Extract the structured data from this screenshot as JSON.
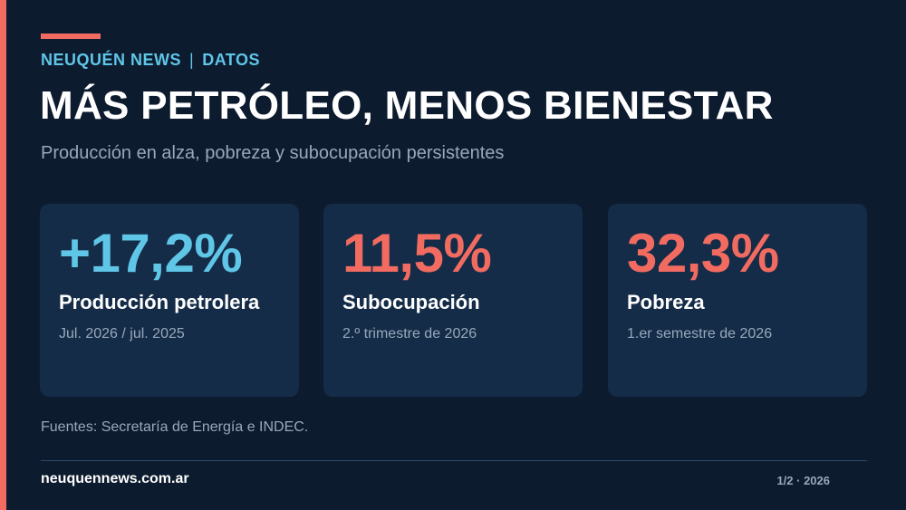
{
  "header": {
    "outlet": "NEUQUÉN NEWS",
    "separator": "|",
    "section": "DATOS",
    "title": "MÁS PETRÓLEO, MENOS BIENESTAR",
    "subtitle": "Producción en alza, pobreza y subocupación persistentes"
  },
  "cards": [
    {
      "value": "+17,2%",
      "label": "Producción petrolera",
      "period": "Jul. 2026 / jul. 2025",
      "value_color": "#5fc6e8"
    },
    {
      "value": "11,5%",
      "label": "Subocupación",
      "period": "2.º trimestre de 2026",
      "value_color": "#f26b61"
    },
    {
      "value": "32,3%",
      "label": "Pobreza",
      "period": "1.er semestre de 2026",
      "value_color": "#f26b61"
    }
  ],
  "sources": "Fuentes: Secretaría de Energía e INDEC.",
  "footer": {
    "site": "neuquennews.com.ar",
    "page_info": "1/2 · 2026"
  },
  "colors": {
    "background": "#0d1b2f",
    "card_background": "#142c48",
    "accent_red": "#f26b61",
    "accent_blue": "#5fc6e8"
  }
}
